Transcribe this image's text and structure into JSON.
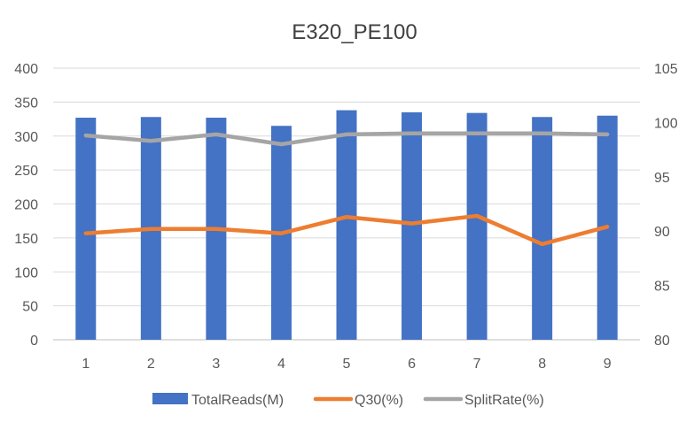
{
  "chart_data": {
    "type": "bar",
    "title": "E320_PE100",
    "categories": [
      "1",
      "2",
      "3",
      "4",
      "5",
      "6",
      "7",
      "8",
      "9"
    ],
    "y_left": {
      "min": 0,
      "max": 400,
      "ticks": [
        0,
        50,
        100,
        150,
        200,
        250,
        300,
        350,
        400
      ],
      "labels": [
        "0",
        "50",
        "100",
        "150",
        "200",
        "250",
        "300",
        "350",
        "400"
      ]
    },
    "y_right": {
      "min": 80,
      "max": 105,
      "ticks": [
        80,
        85,
        90,
        95,
        100,
        105
      ],
      "labels": [
        "80",
        "85",
        "90",
        "95",
        "100",
        "105"
      ]
    },
    "grid": true,
    "legend_position": "bottom",
    "series": [
      {
        "name": "TotalReads(M)",
        "type": "bar",
        "axis": "left",
        "color": "#4472C4",
        "values": [
          327,
          328,
          327,
          315,
          338,
          335,
          334,
          328,
          330
        ]
      },
      {
        "name": "Q30(%)",
        "type": "line",
        "axis": "right",
        "color": "#ED7D31",
        "values": [
          89.8,
          90.2,
          90.2,
          89.8,
          91.3,
          90.7,
          91.4,
          88.8,
          90.4
        ]
      },
      {
        "name": "SplitRate(%)",
        "type": "line",
        "axis": "right",
        "color": "#A5A5A5",
        "values": [
          98.8,
          98.3,
          98.9,
          98.0,
          98.9,
          99.0,
          99.0,
          99.0,
          98.9
        ]
      }
    ]
  }
}
